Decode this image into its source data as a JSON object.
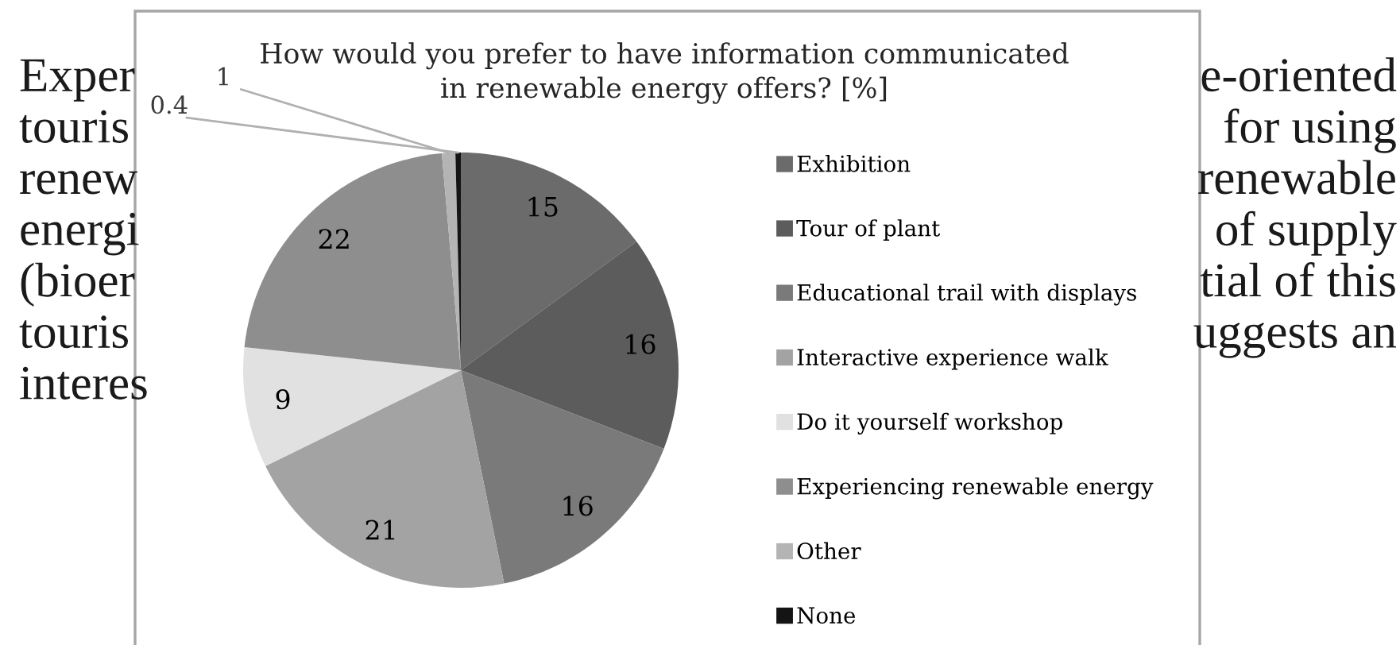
{
  "chart_data": {
    "type": "pie",
    "title": "How would you prefer to have information communicated\nin renewable energy offers? [%]",
    "categories": [
      "Exhibition",
      "Tour of plant",
      "Educational trail with displays",
      "Interactive experience walk",
      "Do it yourself workshop",
      "Experiencing renewable energy",
      "Other",
      "None"
    ],
    "values": [
      15,
      16,
      16,
      21,
      9,
      22,
      1,
      0.4
    ],
    "colors": [
      "#6b6b6b",
      "#5c5c5c",
      "#7a7a7a",
      "#a3a3a3",
      "#e1e1e1",
      "#8e8e8e",
      "#b4b4b4",
      "#141414"
    ],
    "data_labels": true,
    "legend": "right",
    "annotations": [
      "Exper",
      "e-oriented",
      "touris",
      "for using",
      "renew",
      "renewable",
      "energi",
      "of supply",
      "(bioer",
      "tial of this",
      "touris",
      "uggests an",
      "interes"
    ]
  }
}
